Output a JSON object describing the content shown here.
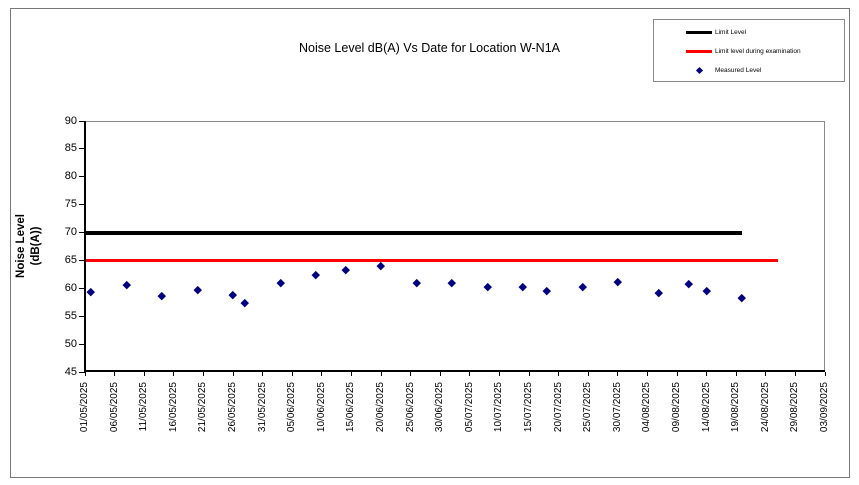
{
  "chart_data": {
    "type": "scatter",
    "title": "Noise Level dB(A) Vs Date for Location W-N1A",
    "xlabel": "",
    "ylabel": "Noise Level (dB(A))",
    "ylabel_lines": [
      "Noise Level",
      "(dB(A))"
    ],
    "ylim": [
      45,
      90
    ],
    "y_ticks": [
      45,
      50,
      55,
      60,
      65,
      70,
      75,
      80,
      85,
      90
    ],
    "x_tick_labels": [
      "01/05/2025",
      "06/05/2025",
      "11/05/2025",
      "16/05/2025",
      "21/05/2025",
      "26/05/2025",
      "31/05/2025",
      "05/06/2025",
      "10/06/2025",
      "15/06/2025",
      "20/06/2025",
      "25/06/2025",
      "30/06/2025",
      "05/07/2025",
      "10/07/2025",
      "15/07/2025",
      "20/07/2025",
      "25/07/2025",
      "30/07/2025",
      "04/08/2025",
      "09/08/2025",
      "14/08/2025",
      "19/08/2025",
      "24/08/2025",
      "29/08/2025",
      "03/09/2025"
    ],
    "x_start_date": "01/05/2025",
    "x_end_date": "03/09/2025",
    "x_span_days": 125,
    "grid": false,
    "legend_position": "top-right",
    "colors": {
      "limit": "#000000",
      "limit_examination": "#FF0000",
      "measured": "#000080"
    },
    "series": [
      {
        "name": "Limit Level",
        "kind": "line",
        "color": "#000000",
        "thickness": 4,
        "value": 70,
        "start_day": 0,
        "end_day": 111
      },
      {
        "name": "Limit level during examination",
        "kind": "line",
        "color": "#FF0000",
        "thickness": 3,
        "value": 65,
        "start_day": 0,
        "end_day": 117
      },
      {
        "name": "Measured Level",
        "kind": "scatter",
        "color": "#000080",
        "points": [
          {
            "date": "02/05/2025",
            "day": 1,
            "value": 59.4
          },
          {
            "date": "08/05/2025",
            "day": 7,
            "value": 60.7
          },
          {
            "date": "14/05/2025",
            "day": 13,
            "value": 58.6
          },
          {
            "date": "20/05/2025",
            "day": 19,
            "value": 59.8
          },
          {
            "date": "26/05/2025",
            "day": 25,
            "value": 58.8
          },
          {
            "date": "28/05/2025",
            "day": 27,
            "value": 57.4
          },
          {
            "date": "03/06/2025",
            "day": 33,
            "value": 61.0
          },
          {
            "date": "09/06/2025",
            "day": 39,
            "value": 62.5
          },
          {
            "date": "14/06/2025",
            "day": 44,
            "value": 63.4
          },
          {
            "date": "20/06/2025",
            "day": 50,
            "value": 64.0
          },
          {
            "date": "26/06/2025",
            "day": 56,
            "value": 61.0
          },
          {
            "date": "02/07/2025",
            "day": 62,
            "value": 61.0
          },
          {
            "date": "08/07/2025",
            "day": 68,
            "value": 60.3
          },
          {
            "date": "14/07/2025",
            "day": 74,
            "value": 60.3
          },
          {
            "date": "18/07/2025",
            "day": 78,
            "value": 59.5
          },
          {
            "date": "24/07/2025",
            "day": 84,
            "value": 60.3
          },
          {
            "date": "30/07/2025",
            "day": 90,
            "value": 61.1
          },
          {
            "date": "06/08/2025",
            "day": 97,
            "value": 59.2
          },
          {
            "date": "11/08/2025",
            "day": 102,
            "value": 60.8
          },
          {
            "date": "14/08/2025",
            "day": 105,
            "value": 59.5
          },
          {
            "date": "20/08/2025",
            "day": 111,
            "value": 58.3
          }
        ]
      }
    ]
  }
}
